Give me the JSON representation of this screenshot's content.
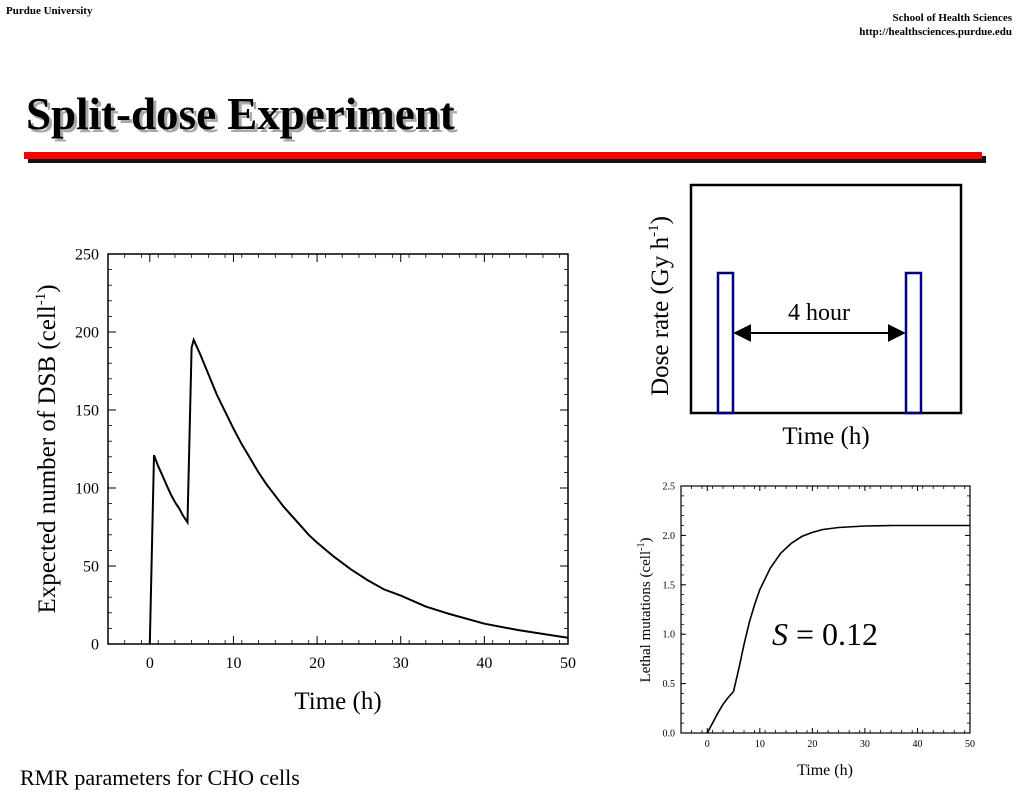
{
  "header": {
    "left": "Purdue University",
    "right_line1": "School of Health Sciences",
    "right_line2": "http://healthsciences.purdue.edu"
  },
  "title": "Split-dose Experiment",
  "footnote": "RMR parameters for CHO cells",
  "chart_data": [
    {
      "type": "line",
      "xlabel": "Time (h)",
      "ylabel": "Expected number of DSB (cell",
      "ylabel_sup": "-1",
      "ylabel_close": ")",
      "xlim": [
        -5,
        50
      ],
      "ylim": [
        0,
        250
      ],
      "xticks": [
        0,
        10,
        20,
        30,
        40,
        50
      ],
      "yticks": [
        0,
        50,
        100,
        150,
        200,
        250
      ],
      "series": [
        {
          "x": [
            0,
            0.5,
            1,
            1.5,
            2,
            2.5,
            3,
            3.5,
            4,
            4.5,
            5,
            5.25,
            6,
            7,
            8,
            9,
            10,
            11,
            12,
            13,
            14,
            15,
            16,
            17,
            18,
            19,
            20,
            22,
            24,
            26,
            28,
            30,
            33,
            36,
            40,
            44,
            50
          ],
          "y": [
            0,
            121,
            114,
            108,
            102,
            96,
            91,
            87,
            82,
            78,
            190,
            195,
            186,
            173,
            160,
            149,
            138,
            128,
            119,
            110,
            102,
            95,
            88,
            82,
            76,
            70,
            65,
            56,
            48,
            41,
            35,
            31,
            24,
            19,
            13,
            9,
            4
          ]
        }
      ]
    },
    {
      "type": "bar",
      "title": "",
      "xlabel": "Time (h)",
      "ylabel": "Dose rate (Gy h",
      "ylabel_sup": "-1",
      "ylabel_close": ")",
      "annotation": "4 hour",
      "doses": [
        {
          "start_h": 0,
          "end_h": 0.5
        },
        {
          "start_h": 4.5,
          "end_h": 5
        }
      ]
    },
    {
      "type": "line",
      "xlabel": "Time (h)",
      "ylabel": "Lethal mutations (cell",
      "ylabel_sup": "-1",
      "ylabel_close": ")",
      "annotation_italic": "S",
      "annotation_value": " = 0.12",
      "xlim": [
        -5,
        50
      ],
      "ylim": [
        0,
        2.5
      ],
      "xticks": [
        0,
        10,
        20,
        30,
        40,
        50
      ],
      "yticks": [
        "0.0",
        "0.5",
        "1.0",
        "1.5",
        "2.0",
        "2.5"
      ],
      "series": [
        {
          "x": [
            0,
            1,
            2,
            3,
            4,
            5,
            6,
            7,
            8,
            9,
            10,
            12,
            14,
            16,
            18,
            20,
            22,
            25,
            30,
            35,
            40,
            45,
            50
          ],
          "y": [
            0,
            0.1,
            0.2,
            0.29,
            0.36,
            0.42,
            0.65,
            0.9,
            1.12,
            1.3,
            1.45,
            1.67,
            1.82,
            1.92,
            1.99,
            2.03,
            2.06,
            2.08,
            2.095,
            2.1,
            2.1,
            2.1,
            2.1
          ]
        }
      ]
    }
  ]
}
